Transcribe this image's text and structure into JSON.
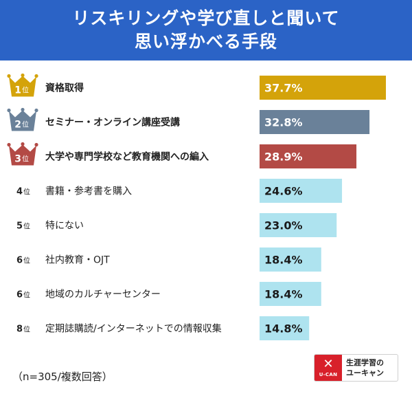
{
  "header": {
    "title_line1": "リスキリングや学び直しと聞いて",
    "title_line2": "思い浮かべる手段"
  },
  "chart_data": {
    "type": "bar",
    "orientation": "horizontal",
    "value_unit": "%",
    "categories": [
      "資格取得",
      "セミナー・オンライン講座受講",
      "大学や専門学校など教育機関への編入",
      "書籍・参考書を購入",
      "特にない",
      "社内教育・OJT",
      "地域のカルチャーセンター",
      "定期誌購読/インターネットでの情報収集"
    ],
    "values": [
      37.7,
      32.8,
      28.9,
      24.6,
      23.0,
      18.4,
      18.4,
      14.8
    ],
    "value_labels": [
      "37.7%",
      "32.8%",
      "28.9%",
      "24.6%",
      "23.0%",
      "18.4%",
      "18.4%",
      "14.8%"
    ],
    "ranks": [
      "1",
      "2",
      "3",
      "4",
      "5",
      "6",
      "6",
      "8"
    ],
    "rank_suffix": "位",
    "bar_colors": [
      "#d4a30a",
      "#6a8199",
      "#b34a45",
      "#aee3ef",
      "#aee3ef",
      "#aee3ef",
      "#aee3ef",
      "#aee3ef"
    ],
    "crown_colors": [
      "#d4a30a",
      "#6a8199",
      "#b34a45"
    ],
    "xlim": [
      0,
      40
    ]
  },
  "footnote": "（n=305/複数回答）",
  "logo": {
    "mark_text": "U-CAN",
    "line1": "生涯学習の",
    "line2": "ユーキャン"
  }
}
